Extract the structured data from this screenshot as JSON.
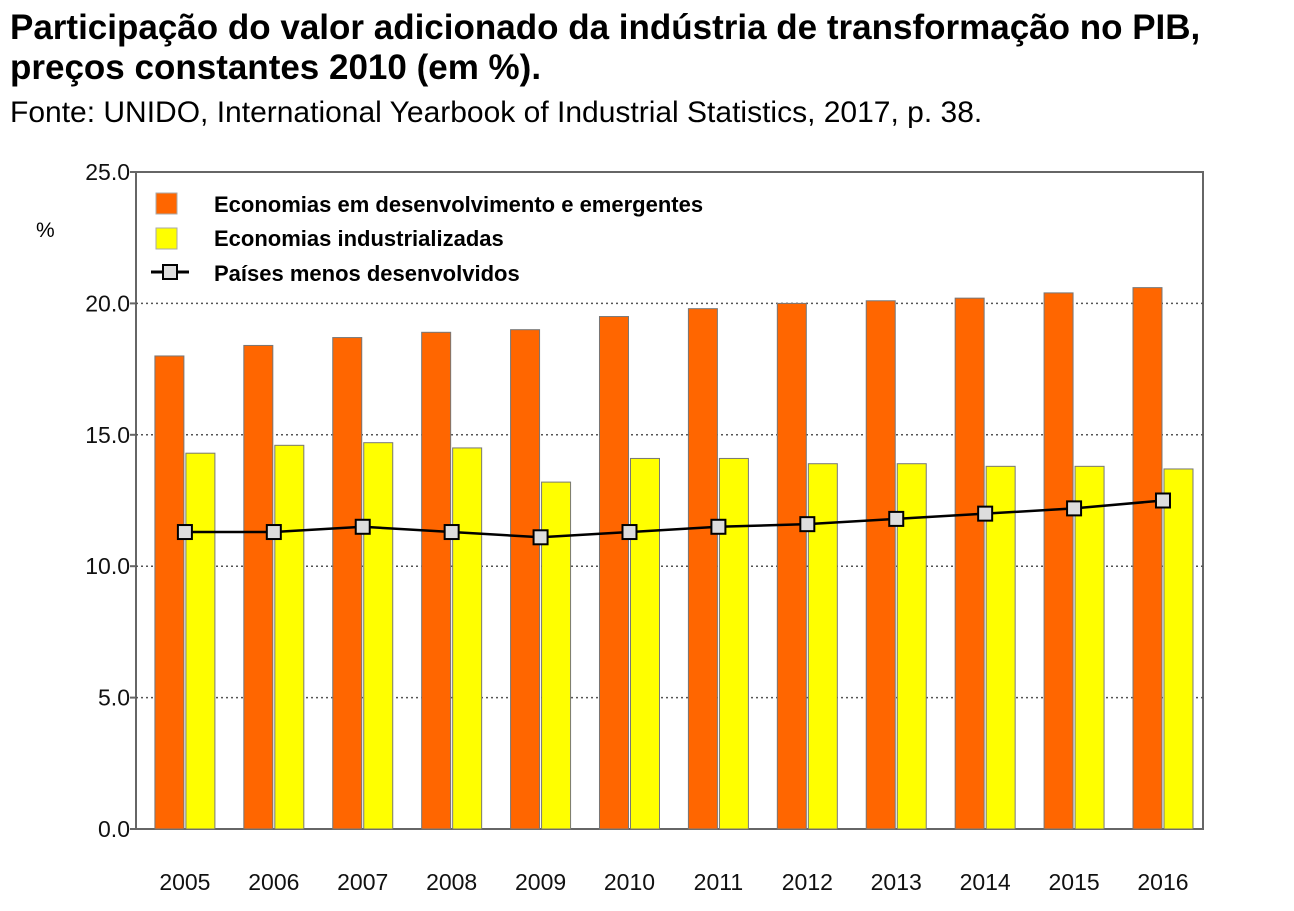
{
  "header": {
    "title": "Participação do valor adicionado da indústria de transformação no PIB, preços constantes 2010 (em %).",
    "source": "Fonte: UNIDO, International Yearbook of Industrial Statistics, 2017, p. 38."
  },
  "chart_data": {
    "type": "bar",
    "ylabel": "%",
    "ylim": [
      0,
      25
    ],
    "yticks": [
      "0.0",
      "5.0",
      "10.0",
      "15.0",
      "20.0",
      "25.0"
    ],
    "grid": true,
    "legend_position": "top-left",
    "categories": [
      "2005",
      "2006",
      "2007",
      "2008",
      "2009",
      "2010",
      "2011",
      "2012",
      "2013",
      "2014",
      "2015",
      "2016"
    ],
    "series": [
      {
        "name": "Economias em desenvolvimento e emergentes",
        "kind": "bar",
        "color": "#ff6600",
        "values": [
          18.0,
          18.4,
          18.7,
          18.9,
          19.0,
          19.5,
          19.8,
          20.0,
          20.1,
          20.2,
          20.4,
          20.6
        ]
      },
      {
        "name": "Economias industrializadas",
        "kind": "bar",
        "color": "#ffff00",
        "values": [
          14.3,
          14.6,
          14.7,
          14.5,
          13.2,
          14.1,
          14.1,
          13.9,
          13.9,
          13.8,
          13.8,
          13.7
        ]
      },
      {
        "name": "Países menos desenvolvidos",
        "kind": "line",
        "color": "#000000",
        "values": [
          11.3,
          11.3,
          11.5,
          11.3,
          11.1,
          11.3,
          11.5,
          11.6,
          11.8,
          12.0,
          12.2,
          12.5
        ]
      }
    ]
  }
}
